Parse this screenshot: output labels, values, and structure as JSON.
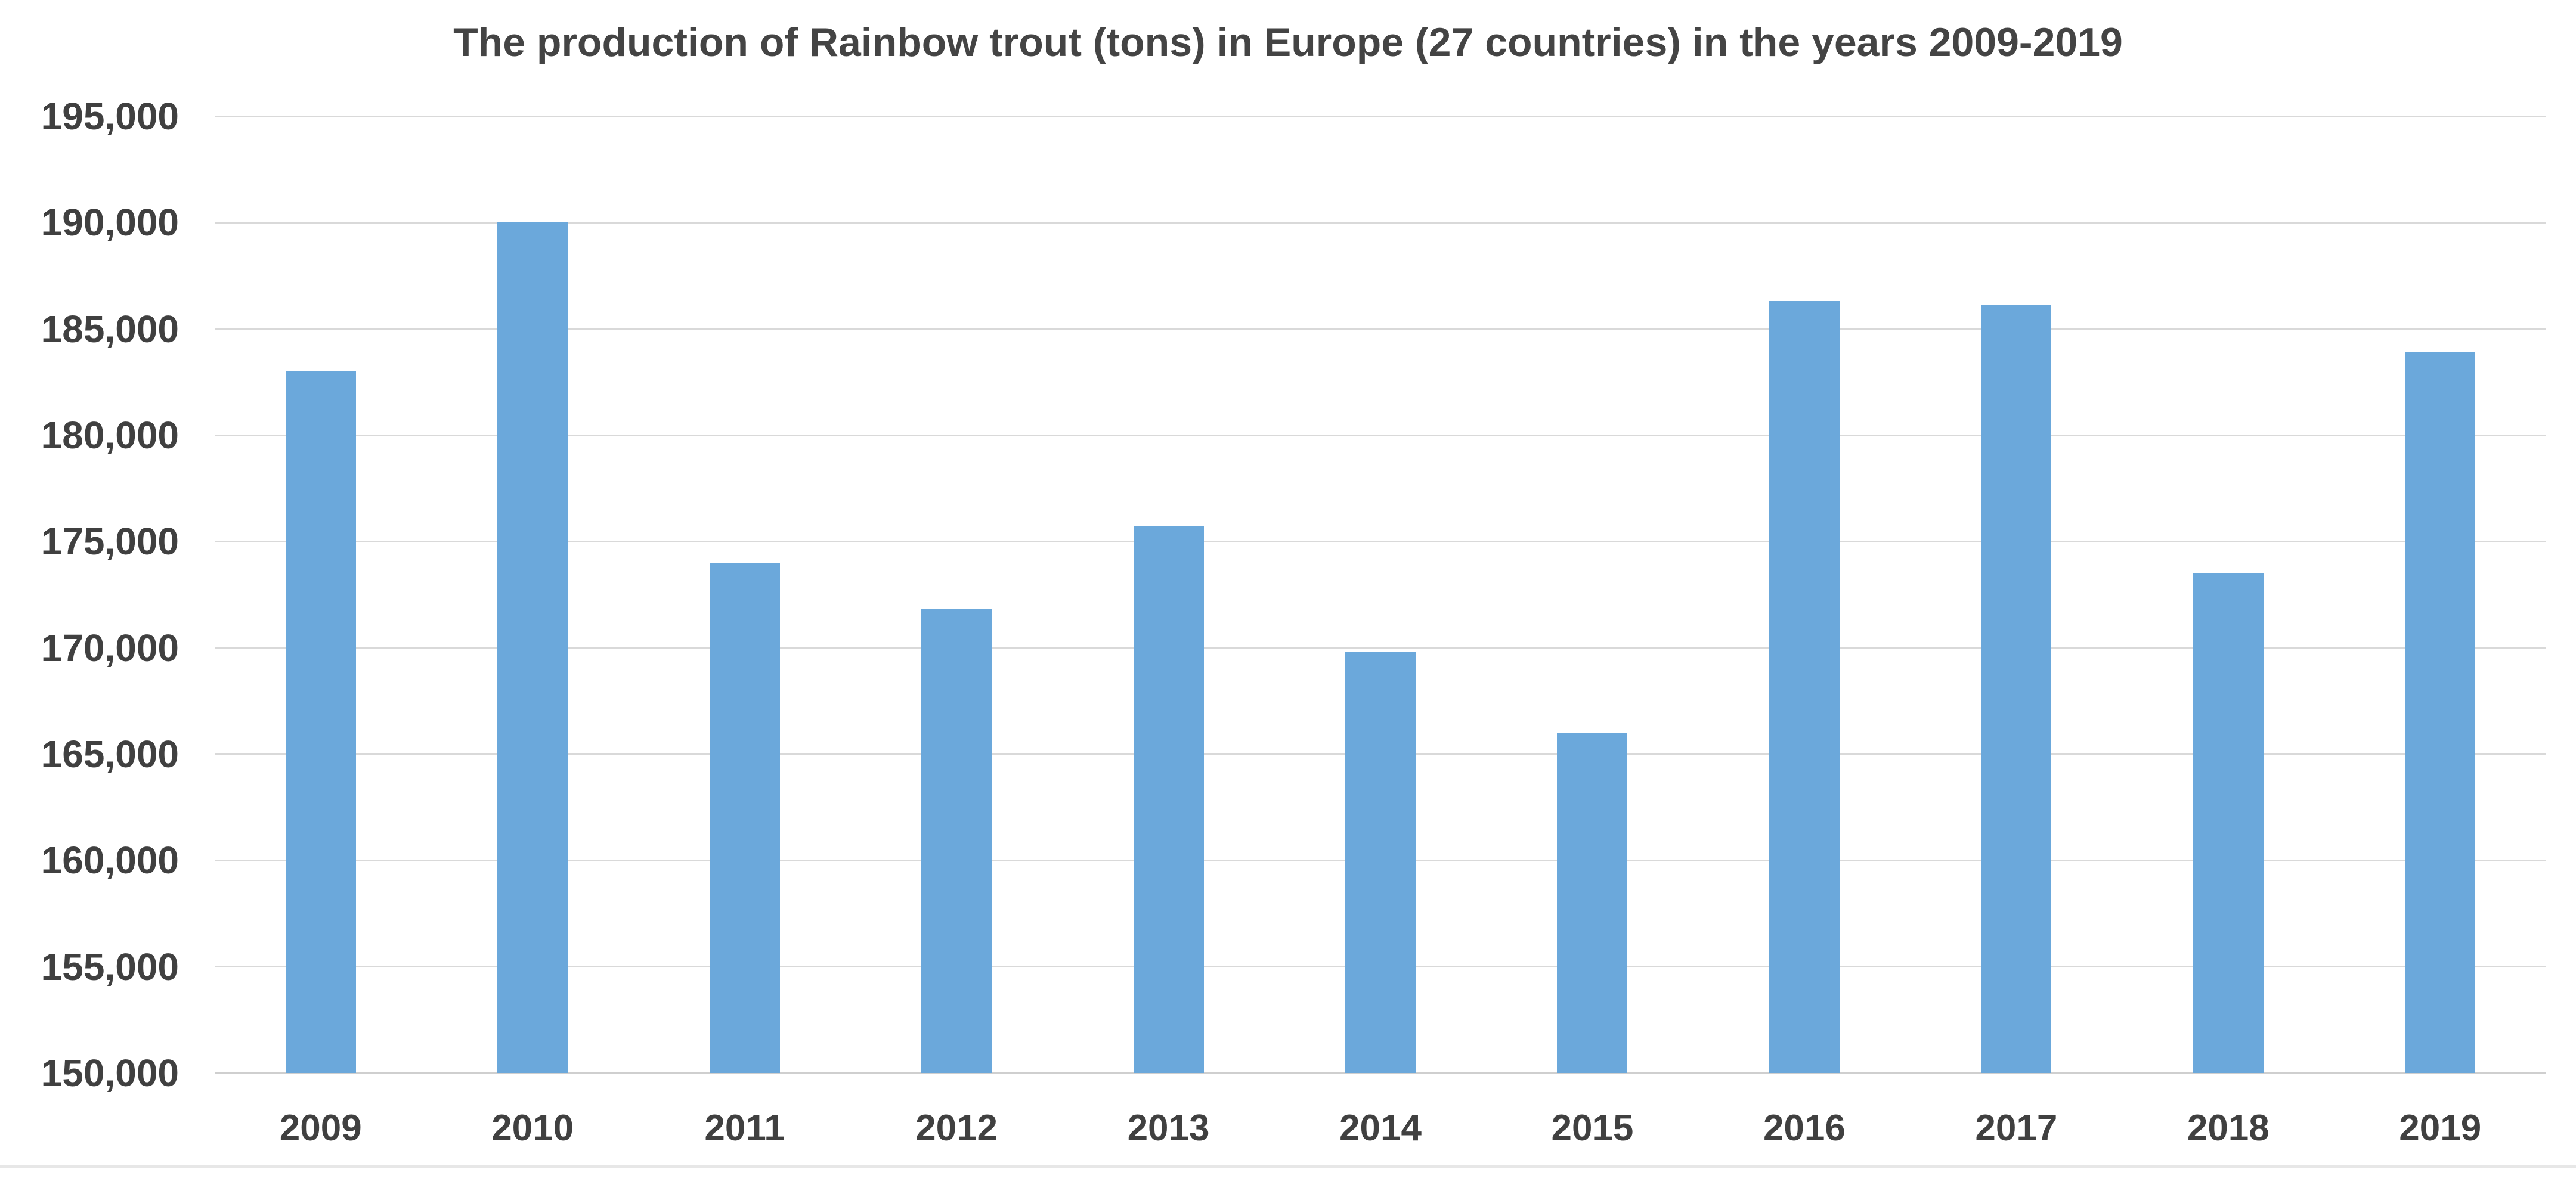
{
  "chart_data": {
    "type": "bar",
    "title": "The production of Rainbow trout (tons) in Europe (27 countries) in the years 2009-2019",
    "categories": [
      "2009",
      "2010",
      "2011",
      "2012",
      "2013",
      "2014",
      "2015",
      "2016",
      "2017",
      "2018",
      "2019"
    ],
    "values": [
      183000,
      190000,
      174000,
      171800,
      175700,
      169800,
      166000,
      186300,
      186100,
      173500,
      183900
    ],
    "xlabel": "",
    "ylabel": "",
    "ylim": [
      150000,
      195000
    ],
    "ytick_values": [
      150000,
      155000,
      160000,
      165000,
      170000,
      175000,
      180000,
      185000,
      190000,
      195000
    ],
    "ytick_labels": [
      "150,000",
      "155,000",
      "160,000",
      "165,000",
      "170,000",
      "175,000",
      "180,000",
      "185,000",
      "190,000",
      "195,000"
    ],
    "grid": "horizontal",
    "legend": "none",
    "bar_color": "#6BA8DB",
    "gridline_color": "#D9D9D9",
    "axis_line_color": "#CFCFCF",
    "text_color": "#404040",
    "background_color": "#FFFFFF"
  }
}
